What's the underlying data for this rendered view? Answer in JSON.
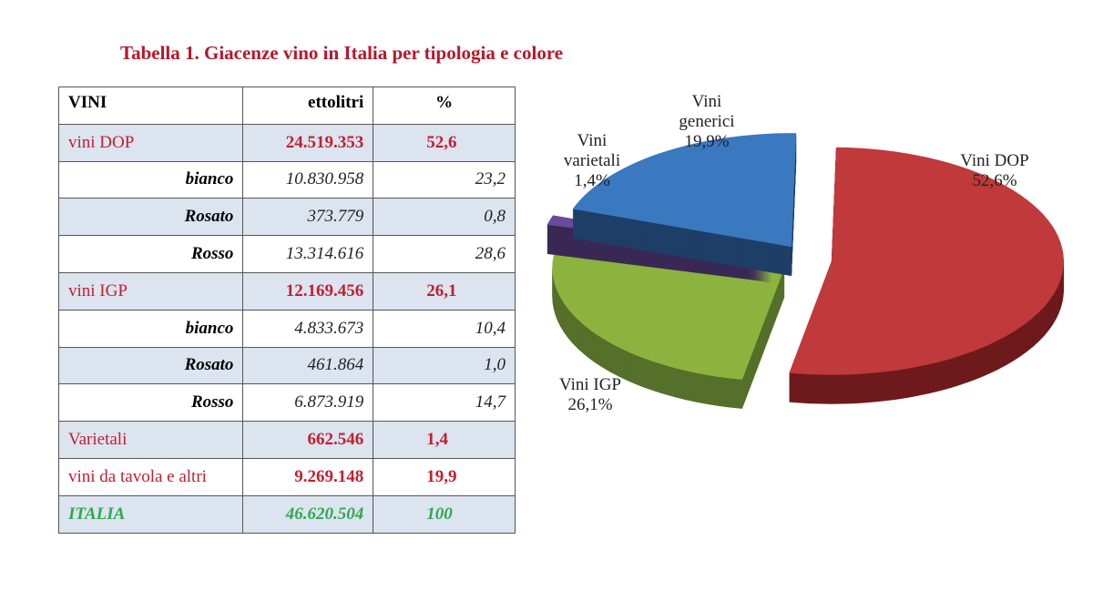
{
  "title": "Tabella 1. Giacenze vino in Italia per tipologia e colore",
  "table": {
    "headers": [
      "VINI",
      "ettolitri",
      "%"
    ],
    "rows": [
      {
        "label": "vini DOP",
        "hl": "24.519.353",
        "pct": "52,6",
        "kind": "main"
      },
      {
        "label": "bianco",
        "hl": "10.830.958",
        "pct": "23,2",
        "kind": "sub"
      },
      {
        "label": "Rosato",
        "hl": "373.779",
        "pct": "0,8",
        "kind": "sub"
      },
      {
        "label": "Rosso",
        "hl": "13.314.616",
        "pct": "28,6",
        "kind": "sub"
      },
      {
        "label": "vini IGP",
        "hl": "12.169.456",
        "pct": "26,1",
        "kind": "main"
      },
      {
        "label": "bianco",
        "hl": "4.833.673",
        "pct": "10,4",
        "kind": "sub"
      },
      {
        "label": "Rosato",
        "hl": "461.864",
        "pct": "1,0",
        "kind": "sub"
      },
      {
        "label": "Rosso",
        "hl": "6.873.919",
        "pct": "14,7",
        "kind": "sub"
      },
      {
        "label": "Varietali",
        "hl": "662.546",
        "pct": "1,4",
        "kind": "main"
      },
      {
        "label": "vini da tavola e altri",
        "hl": "9.269.148",
        "pct": "19,9",
        "kind": "main"
      },
      {
        "label": "ITALIA",
        "hl": "46.620.504",
        "pct": "100",
        "kind": "tot"
      }
    ]
  },
  "colors": {
    "title": "#b8172a",
    "main_rows": "#c21f30",
    "total_row": "#2fa84f",
    "row_shade": "#dbe4ef"
  },
  "chart_data": {
    "type": "pie",
    "style": "3d-exploded",
    "slices": [
      {
        "label": [
          "Vini DOP",
          "52,6%"
        ],
        "value": 52.6,
        "color": "#c0393b",
        "dark": "#6e1a1c"
      },
      {
        "label": [
          "Vini IGP",
          "26,1%"
        ],
        "value": 26.1,
        "color": "#8db33f",
        "dark": "#55702a"
      },
      {
        "label": [
          "Vini",
          "varietali",
          "1,4%"
        ],
        "value": 1.4,
        "color": "#6a4a9a",
        "dark": "#3a2854"
      },
      {
        "label": [
          "Vini",
          "generici",
          "19,9%"
        ],
        "value": 19.9,
        "color": "#3a78c0",
        "dark": "#1e3f68"
      }
    ]
  }
}
